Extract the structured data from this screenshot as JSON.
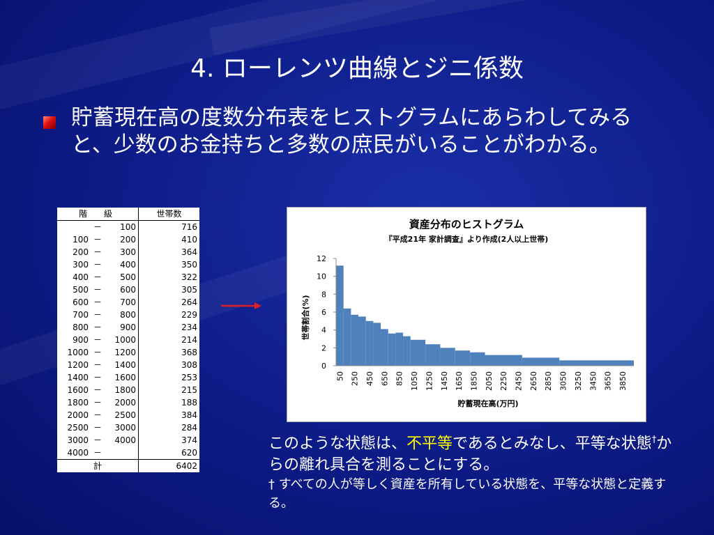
{
  "slide": {
    "title": "4. ローレンツ曲線とジニ係数",
    "bullet": "貯蓄現在高の度数分布表をヒストグラムにあらわしてみると、少数のお金持ちと多数の庶民がいることがわかる。",
    "caption_before": "このような状態は、",
    "caption_highlight": "不平等",
    "caption_after": "であるとみなし、平等な状態",
    "caption_dagger": "†",
    "caption_end": "からの離れ具合を測ることにする。",
    "note": "† すべての人が等しく資産を所有している状態を、平等な状態と定義する。",
    "accent_color": "#ffff00",
    "arrow_color": "#e02020"
  },
  "table": {
    "header_class": "階　級",
    "header_households": "世帯数",
    "dash": "－",
    "rows": [
      {
        "lo": "",
        "hi": "100",
        "count": "716"
      },
      {
        "lo": "100",
        "hi": "200",
        "count": "410"
      },
      {
        "lo": "200",
        "hi": "300",
        "count": "364"
      },
      {
        "lo": "300",
        "hi": "400",
        "count": "350"
      },
      {
        "lo": "400",
        "hi": "500",
        "count": "322"
      },
      {
        "lo": "500",
        "hi": "600",
        "count": "305"
      },
      {
        "lo": "600",
        "hi": "700",
        "count": "264"
      },
      {
        "lo": "700",
        "hi": "800",
        "count": "229"
      },
      {
        "lo": "800",
        "hi": "900",
        "count": "234"
      },
      {
        "lo": "900",
        "hi": "1000",
        "count": "214"
      },
      {
        "lo": "1000",
        "hi": "1200",
        "count": "368"
      },
      {
        "lo": "1200",
        "hi": "1400",
        "count": "308"
      },
      {
        "lo": "1400",
        "hi": "1600",
        "count": "253"
      },
      {
        "lo": "1600",
        "hi": "1800",
        "count": "215"
      },
      {
        "lo": "1800",
        "hi": "2000",
        "count": "188"
      },
      {
        "lo": "2000",
        "hi": "2500",
        "count": "384"
      },
      {
        "lo": "2500",
        "hi": "3000",
        "count": "284"
      },
      {
        "lo": "3000",
        "hi": "4000",
        "count": "374"
      },
      {
        "lo": "4000",
        "hi": "",
        "count": "620"
      }
    ],
    "total_label": "計",
    "total_value": "6402"
  },
  "chart_data": {
    "type": "bar",
    "title": "資産分布のヒストグラム",
    "subtitle": "『平成21年 家計調査』より作成(2人以上世帯)",
    "xlabel": "貯蓄現在高(万円)",
    "ylabel": "世帯割合(%)",
    "ylim": [
      0,
      12
    ],
    "yticks": [
      0,
      2,
      4,
      6,
      8,
      10,
      12
    ],
    "xlim": [
      0,
      4000
    ],
    "xticks": [
      50,
      250,
      450,
      650,
      850,
      1050,
      1250,
      1450,
      1650,
      1850,
      2050,
      2250,
      2450,
      2650,
      2850,
      3050,
      3250,
      3450,
      3650,
      3850
    ],
    "bar_color": "#4f81bd",
    "bins": [
      {
        "from": 0,
        "to": 100,
        "value": 11.2
      },
      {
        "from": 100,
        "to": 200,
        "value": 6.4
      },
      {
        "from": 200,
        "to": 300,
        "value": 5.7
      },
      {
        "from": 300,
        "to": 400,
        "value": 5.5
      },
      {
        "from": 400,
        "to": 500,
        "value": 5.0
      },
      {
        "from": 500,
        "to": 600,
        "value": 4.8
      },
      {
        "from": 600,
        "to": 700,
        "value": 4.1
      },
      {
        "from": 700,
        "to": 800,
        "value": 3.6
      },
      {
        "from": 800,
        "to": 900,
        "value": 3.7
      },
      {
        "from": 900,
        "to": 1000,
        "value": 3.3
      },
      {
        "from": 1000,
        "to": 1200,
        "value": 2.9
      },
      {
        "from": 1200,
        "to": 1400,
        "value": 2.4
      },
      {
        "from": 1400,
        "to": 1600,
        "value": 2.0
      },
      {
        "from": 1600,
        "to": 1800,
        "value": 1.7
      },
      {
        "from": 1800,
        "to": 2000,
        "value": 1.5
      },
      {
        "from": 2000,
        "to": 2500,
        "value": 1.2
      },
      {
        "from": 2500,
        "to": 3000,
        "value": 0.9
      },
      {
        "from": 3000,
        "to": 4000,
        "value": 0.6
      }
    ]
  }
}
